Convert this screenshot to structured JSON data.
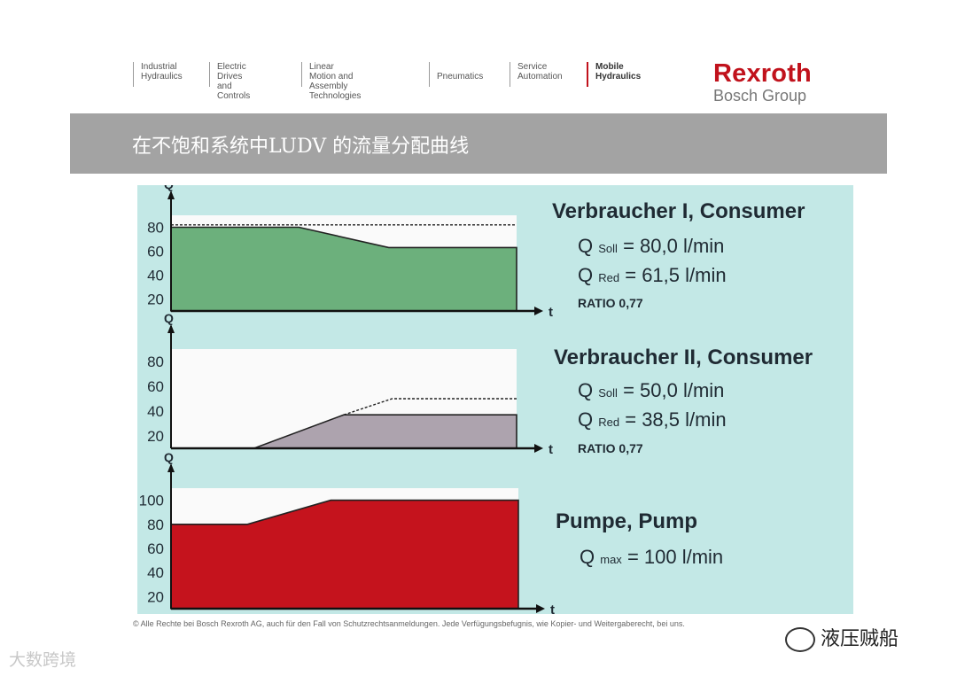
{
  "nav": [
    {
      "label": "Industrial\nHydraulics",
      "active": false
    },
    {
      "label": "Electric Drives\nand Controls",
      "active": false
    },
    {
      "label": "Linear Motion and\nAssembly Technologies",
      "active": false
    },
    {
      "label": "\nPneumatics",
      "active": false
    },
    {
      "label": "Service\nAutomation",
      "active": false
    },
    {
      "label": "Mobile\nHydraulics",
      "active": true
    }
  ],
  "logo": {
    "main": "Rexroth",
    "sub": "Bosch Group"
  },
  "title": "在不饱和系统中LUDV 的流量分配曲线",
  "consumer1": {
    "title": "Verbraucher I, Consumer",
    "q_soll_prefix": "Q",
    "q_soll_sub": "Soll",
    "q_soll_value": "= 80,0 l/min",
    "q_red_prefix": "Q",
    "q_red_sub": "Red",
    "q_red_value": "= 61,5 l/min",
    "ratio": "RATIO 0,77"
  },
  "consumer2": {
    "title": "Verbraucher II, Consumer",
    "q_soll_prefix": "Q",
    "q_soll_sub": "Soll",
    "q_soll_value": "= 50,0  l/min",
    "q_red_prefix": "Q",
    "q_red_sub": "Red",
    "q_red_value": "= 38,5  l/min",
    "ratio": "RATIO 0,77"
  },
  "pump": {
    "title": "Pumpe, Pump",
    "q_max_prefix": "Q",
    "q_max_sub": "max",
    "q_max_value": "= 100  l/min"
  },
  "chart_data": [
    {
      "type": "area",
      "ylabel": "Q",
      "xlabel": "t",
      "yticks": [
        20,
        40,
        60,
        80
      ],
      "ylim": [
        10,
        90
      ],
      "fill_color": "#6cb07c",
      "series_filled": {
        "t": [
          0,
          0.37,
          0.63,
          1
        ],
        "q": [
          80,
          80,
          63,
          63
        ]
      },
      "series_dotted": {
        "t": [
          0,
          1
        ],
        "q": [
          82,
          82
        ]
      }
    },
    {
      "type": "area",
      "ylabel": "Q",
      "xlabel": "t",
      "yticks": [
        20,
        40,
        60,
        80
      ],
      "ylim": [
        10,
        90
      ],
      "fill_color": "#ada3ae",
      "series_filled": {
        "t": [
          0,
          0.24,
          0.5,
          1
        ],
        "q": [
          10,
          10,
          37,
          37
        ]
      },
      "series_dotted": {
        "t": [
          0.5,
          0.64,
          1
        ],
        "q": [
          37,
          50,
          50
        ]
      }
    },
    {
      "type": "area",
      "ylabel": "Q",
      "xlabel": "t",
      "yticks": [
        20,
        40,
        60,
        80,
        100
      ],
      "ylim": [
        10,
        110
      ],
      "fill_color": "#c5131d",
      "series_filled": {
        "t": [
          0,
          0.22,
          0.46,
          1
        ],
        "q": [
          80,
          80,
          100,
          100
        ]
      }
    }
  ],
  "copyright": "© Alle Rechte bei Bosch Rexroth AG, auch für den Fall von Schutzrechtsanmeldungen. Jede Verfügungsbefugnis, wie Kopier- und Weitergaberecht, bei uns.",
  "watermark_left": "大数跨境",
  "watermark_right": "液压贼船"
}
